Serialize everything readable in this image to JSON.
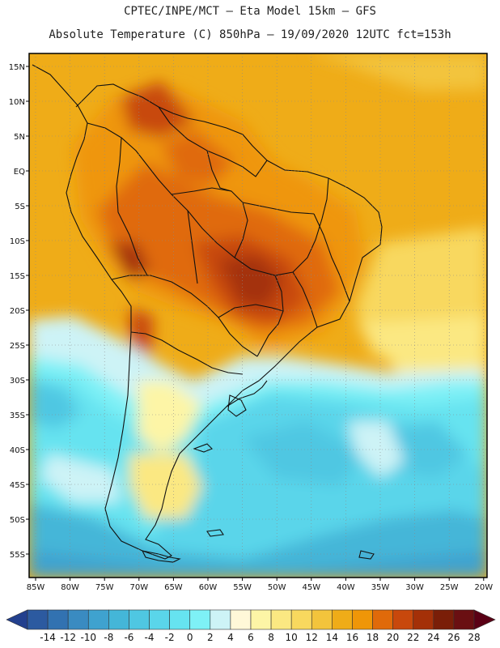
{
  "header": {
    "title_line1": "CPTEC/INPE/MCT –  Eta Model 15km – GFS",
    "title_line2": "Absolute Temperature (C) 850hPa – 19/09/2020 12UTC fct=153h"
  },
  "map": {
    "lat_labels": [
      "15N",
      "10N",
      "5N",
      "EQ",
      "5S",
      "10S",
      "15S",
      "20S",
      "25S",
      "30S",
      "35S",
      "40S",
      "45S",
      "50S",
      "55S"
    ],
    "lon_labels": [
      "85W",
      "80W",
      "75W",
      "70W",
      "65W",
      "60W",
      "55W",
      "50W",
      "45W",
      "40W",
      "35W",
      "30W",
      "25W",
      "20W"
    ]
  },
  "colorbar": {
    "labels": [
      "-14",
      "-12",
      "-10",
      "-8",
      "-6",
      "-4",
      "-2",
      "0",
      "2",
      "4",
      "6",
      "8",
      "10",
      "12",
      "14",
      "16",
      "18",
      "20",
      "22",
      "24",
      "26",
      "28"
    ],
    "colors": [
      "#23408e",
      "#2c5aa0",
      "#3272b1",
      "#3a8bc1",
      "#3fa2cf",
      "#44b6d8",
      "#4fc7e2",
      "#5ad5ea",
      "#66e3f0",
      "#7ef1f6",
      "#cdf3f6",
      "#fff8d8",
      "#fdf5a6",
      "#fbe882",
      "#f8d85e",
      "#f3c43c",
      "#efac18",
      "#ef9608",
      "#e06a0a",
      "#c8480c",
      "#a43008",
      "#7a1e08",
      "#6a0f12",
      "#5a0015"
    ]
  }
}
